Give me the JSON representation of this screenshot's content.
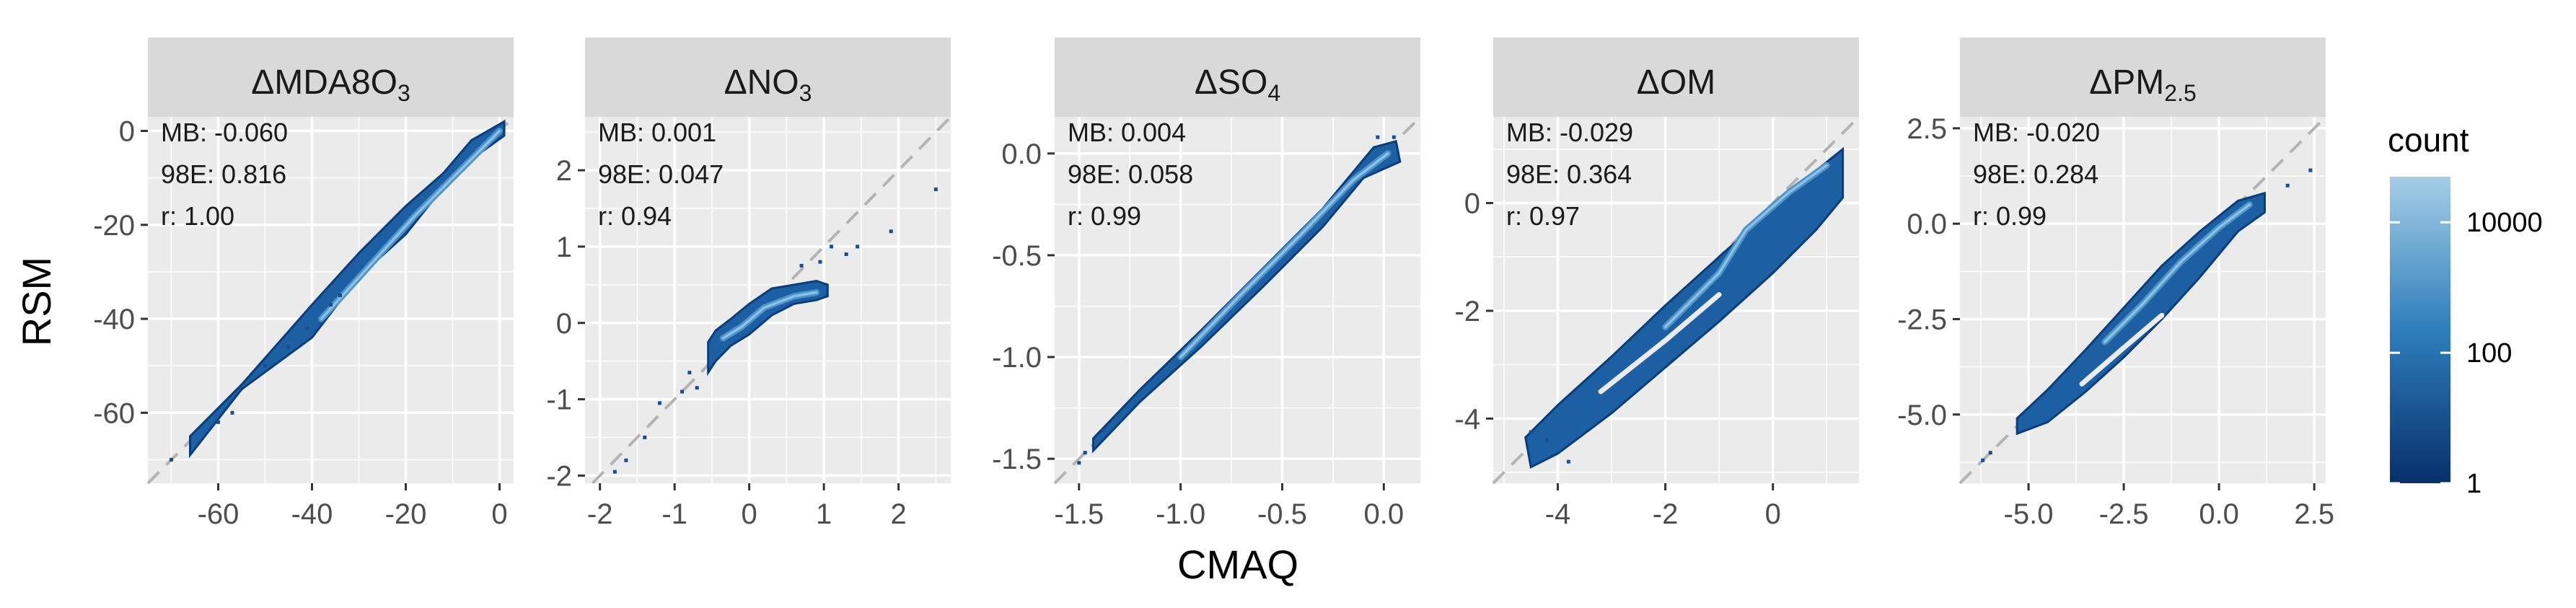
{
  "chart_data": {
    "type": "scatter",
    "subtype": "hexbin-density",
    "xlabel": "CMAQ",
    "ylabel": "RSM",
    "legend": {
      "title": "count",
      "scale": "log10",
      "tick_values": [
        1,
        100,
        10000
      ],
      "tick_labels": [
        "1",
        "100",
        "10000"
      ],
      "range": [
        1,
        50000
      ],
      "colors": [
        "#08306b",
        "#2e7ebc",
        "#a6cee6"
      ],
      "placement": "right"
    },
    "panels": [
      {
        "title_main": "ΔMDA8O",
        "title_sub": "3",
        "title_sub_kind": "subscript",
        "xlim": [
          -75,
          3
        ],
        "ylim": [
          -75,
          3
        ],
        "xticks": [
          -60,
          -40,
          -20,
          0
        ],
        "xtick_labels": [
          "-60",
          "-40",
          "-20",
          "0"
        ],
        "yticks": [
          -60,
          -40,
          -20,
          0
        ],
        "ytick_labels": [
          "-60",
          "-40",
          "-20",
          "0"
        ],
        "stats": [
          {
            "label": "MB:",
            "value": "-0.060"
          },
          {
            "label": "98E:",
            "value": "0.816"
          },
          {
            "label": "r:",
            "value": "1.00"
          }
        ],
        "density_band": {
          "lower": [
            [
              -66,
              -69
            ],
            [
              -55,
              -55
            ],
            [
              -40,
              -44
            ],
            [
              -30,
              -31
            ],
            [
              -20,
              -22
            ],
            [
              -12,
              -12
            ],
            [
              -6,
              -6
            ],
            [
              1,
              -1
            ]
          ],
          "upper": [
            [
              1,
              2
            ],
            [
              -6,
              -2
            ],
            [
              -12,
              -9
            ],
            [
              -20,
              -16
            ],
            [
              -30,
              -26
            ],
            [
              -40,
              -37
            ],
            [
              -55,
              -54
            ],
            [
              -66,
              -65
            ]
          ],
          "core": [
            [
              -38,
              -40
            ],
            [
              -28,
              -29
            ],
            [
              -18,
              -18
            ],
            [
              -8,
              -8
            ],
            [
              0,
              0
            ]
          ]
        },
        "outliers": [
          [
            -60,
            -62
          ],
          [
            -50,
            -50
          ],
          [
            -45,
            -46
          ],
          [
            -41,
            -42
          ],
          [
            -36,
            -37
          ],
          [
            -34,
            -35
          ],
          [
            -70,
            -70
          ],
          [
            -57,
            -60
          ]
        ]
      },
      {
        "title_main": "ΔNO",
        "title_sub": "3",
        "title_sub_kind": "subscript",
        "xlim": [
          -2.2,
          2.7
        ],
        "ylim": [
          -2.1,
          2.7
        ],
        "xticks": [
          -2,
          -1,
          0,
          1,
          2
        ],
        "xtick_labels": [
          "-2",
          "-1",
          "0",
          "1",
          "2"
        ],
        "yticks": [
          -2,
          -1,
          0,
          1,
          2
        ],
        "ytick_labels": [
          "-2",
          "-1",
          "0",
          "1",
          "2"
        ],
        "stats": [
          {
            "label": "MB:",
            "value": "0.001"
          },
          {
            "label": "98E:",
            "value": "0.047"
          },
          {
            "label": "r:",
            "value": "0.94"
          }
        ],
        "density_band": {
          "lower": [
            [
              -0.55,
              -0.65
            ],
            [
              -0.45,
              -0.5
            ],
            [
              -0.25,
              -0.3
            ],
            [
              0,
              -0.15
            ],
            [
              0.3,
              0.1
            ],
            [
              0.6,
              0.25
            ],
            [
              0.9,
              0.3
            ],
            [
              1.05,
              0.35
            ]
          ],
          "upper": [
            [
              1.05,
              0.5
            ],
            [
              0.9,
              0.55
            ],
            [
              0.6,
              0.5
            ],
            [
              0.3,
              0.45
            ],
            [
              0,
              0.25
            ],
            [
              -0.25,
              0.05
            ],
            [
              -0.45,
              -0.1
            ],
            [
              -0.55,
              -0.25
            ]
          ],
          "core": [
            [
              -0.35,
              -0.2
            ],
            [
              -0.1,
              -0.05
            ],
            [
              0.2,
              0.2
            ],
            [
              0.6,
              0.35
            ],
            [
              0.9,
              0.4
            ]
          ]
        },
        "outliers": [
          [
            -1.8,
            -1.95
          ],
          [
            -1.65,
            -1.8
          ],
          [
            -1.4,
            -1.5
          ],
          [
            -1.2,
            -1.05
          ],
          [
            -0.9,
            -0.9
          ],
          [
            -0.8,
            -0.65
          ],
          [
            -0.7,
            -0.85
          ],
          [
            0.7,
            0.75
          ],
          [
            0.95,
            0.8
          ],
          [
            1.1,
            1.0
          ],
          [
            1.3,
            0.9
          ],
          [
            1.45,
            1.0
          ],
          [
            1.9,
            1.2
          ],
          [
            2.5,
            1.75
          ]
        ]
      },
      {
        "title_main": "ΔSO",
        "title_sub": "4",
        "title_sub_kind": "subscript",
        "xlim": [
          -1.62,
          0.18
        ],
        "ylim": [
          -1.62,
          0.18
        ],
        "xticks": [
          -1.5,
          -1.0,
          -0.5,
          0.0
        ],
        "xtick_labels": [
          "-1.5",
          "-1.0",
          "-0.5",
          "0.0"
        ],
        "yticks": [
          -1.5,
          -1.0,
          -0.5,
          0.0
        ],
        "ytick_labels": [
          "-1.5",
          "-1.0",
          "-0.5",
          "0.0"
        ],
        "stats": [
          {
            "label": "MB:",
            "value": "0.004"
          },
          {
            "label": "98E:",
            "value": "0.058"
          },
          {
            "label": "r:",
            "value": "0.99"
          }
        ],
        "density_band": {
          "lower": [
            [
              -1.43,
              -1.46
            ],
            [
              -1.2,
              -1.22
            ],
            [
              -0.9,
              -0.95
            ],
            [
              -0.6,
              -0.66
            ],
            [
              -0.3,
              -0.36
            ],
            [
              -0.1,
              -0.12
            ],
            [
              0.08,
              -0.04
            ]
          ],
          "upper": [
            [
              0.06,
              0.06
            ],
            [
              -0.05,
              0.03
            ],
            [
              -0.3,
              -0.27
            ],
            [
              -0.6,
              -0.57
            ],
            [
              -0.9,
              -0.87
            ],
            [
              -1.2,
              -1.16
            ],
            [
              -1.43,
              -1.4
            ]
          ],
          "core": [
            [
              -1.0,
              -1.0
            ],
            [
              -0.7,
              -0.69
            ],
            [
              -0.4,
              -0.39
            ],
            [
              -0.15,
              -0.13
            ],
            [
              0.02,
              0.0
            ]
          ]
        },
        "outliers": [
          [
            -1.5,
            -1.52
          ],
          [
            -1.47,
            -1.47
          ],
          [
            -1.38,
            -1.36
          ],
          [
            -0.03,
            0.08
          ],
          [
            0.05,
            0.08
          ]
        ]
      },
      {
        "title_main": "ΔOM",
        "title_sub": "",
        "title_sub_kind": "none",
        "xlim": [
          -5.2,
          1.6
        ],
        "ylim": [
          -5.2,
          1.6
        ],
        "xticks": [
          -4,
          -2,
          0
        ],
        "xtick_labels": [
          "-4",
          "-2",
          "0"
        ],
        "yticks": [
          -4,
          -2,
          0
        ],
        "ytick_labels": [
          "-4",
          "-2",
          "0"
        ],
        "stats": [
          {
            "label": "MB:",
            "value": "-0.029"
          },
          {
            "label": "98E:",
            "value": "0.364"
          },
          {
            "label": "r:",
            "value": "0.97"
          }
        ],
        "density_band": {
          "lower": [
            [
              -4.5,
              -4.9
            ],
            [
              -4.0,
              -4.65
            ],
            [
              -3.0,
              -3.9
            ],
            [
              -2.0,
              -3.05
            ],
            [
              -1.0,
              -2.2
            ],
            [
              0.0,
              -1.3
            ],
            [
              0.8,
              -0.5
            ],
            [
              1.3,
              0.1
            ]
          ],
          "upper": [
            [
              1.3,
              1.0
            ],
            [
              0.8,
              0.6
            ],
            [
              0.0,
              -0.1
            ],
            [
              -1.0,
              -1.0
            ],
            [
              -2.0,
              -1.9
            ],
            [
              -3.0,
              -2.85
            ],
            [
              -4.0,
              -3.75
            ],
            [
              -4.6,
              -4.35
            ]
          ],
          "core": [
            [
              -2.0,
              -2.3
            ],
            [
              -1.0,
              -1.3
            ],
            [
              -0.5,
              -0.5
            ],
            [
              0.3,
              0.2
            ],
            [
              1.0,
              0.7
            ]
          ]
        },
        "gap_band": {
          "points": [
            [
              -3.2,
              -3.5
            ],
            [
              -2.0,
              -2.55
            ],
            [
              -1.0,
              -1.7
            ]
          ]
        },
        "outliers": [
          [
            -4.5,
            -4.25
          ],
          [
            -4.2,
            -4.4
          ],
          [
            -3.8,
            -4.8
          ]
        ]
      },
      {
        "title_main": "ΔPM",
        "title_sub": "2.5",
        "title_sub_kind": "subscript",
        "xlim": [
          -6.8,
          2.8
        ],
        "ylim": [
          -6.8,
          2.8
        ],
        "xticks": [
          -5.0,
          -2.5,
          0.0,
          2.5
        ],
        "xtick_labels": [
          "-5.0",
          "-2.5",
          "0.0",
          "2.5"
        ],
        "yticks": [
          -5.0,
          -2.5,
          0.0,
          2.5
        ],
        "ytick_labels": [
          "-5.0",
          "-2.5",
          "0.0",
          "2.5"
        ],
        "stats": [
          {
            "label": "MB:",
            "value": "-0.020"
          },
          {
            "label": "98E:",
            "value": "0.284"
          },
          {
            "label": "r:",
            "value": "0.99"
          }
        ],
        "density_band": {
          "lower": [
            [
              -5.3,
              -5.5
            ],
            [
              -4.5,
              -5.2
            ],
            [
              -3.5,
              -4.4
            ],
            [
              -2.5,
              -3.5
            ],
            [
              -1.5,
              -2.5
            ],
            [
              -0.5,
              -1.4
            ],
            [
              0.5,
              -0.2
            ],
            [
              1.2,
              0.3
            ]
          ],
          "upper": [
            [
              1.2,
              0.8
            ],
            [
              0.5,
              0.6
            ],
            [
              -0.5,
              -0.2
            ],
            [
              -1.5,
              -1.1
            ],
            [
              -2.5,
              -2.2
            ],
            [
              -3.5,
              -3.3
            ],
            [
              -4.5,
              -4.35
            ],
            [
              -5.3,
              -5.1
            ]
          ],
          "core": [
            [
              -3.0,
              -3.1
            ],
            [
              -2.0,
              -2.1
            ],
            [
              -1.0,
              -1.0
            ],
            [
              0.0,
              -0.1
            ],
            [
              0.8,
              0.5
            ]
          ]
        },
        "gap_band": {
          "points": [
            [
              -3.6,
              -4.2
            ],
            [
              -2.5,
              -3.25
            ],
            [
              -1.5,
              -2.4
            ]
          ]
        },
        "outliers": [
          [
            -6.2,
            -6.2
          ],
          [
            -6.0,
            -6.0
          ],
          [
            1.8,
            1.0
          ],
          [
            2.4,
            1.4
          ]
        ]
      }
    ]
  }
}
